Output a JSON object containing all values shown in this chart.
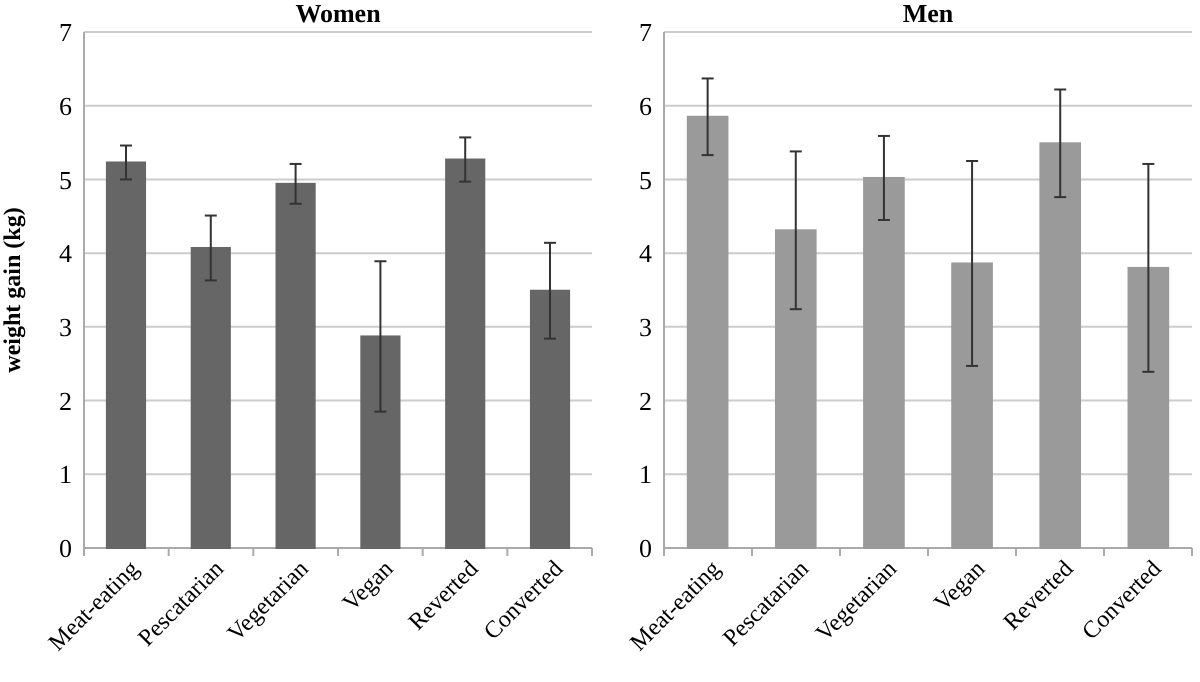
{
  "chart_data": [
    {
      "type": "bar",
      "title": "Women",
      "ylabel": "weight gain (kg)",
      "categories": [
        "Meat-eating",
        "Pescatarian",
        "Vegetarian",
        "Vegan",
        "Reverted",
        "Converted"
      ],
      "series": [
        {
          "color": "#666666",
          "values": [
            5.23,
            4.07,
            4.94,
            2.87,
            5.27,
            3.49
          ],
          "errors": [
            0.23,
            0.44,
            0.27,
            1.02,
            0.3,
            0.65
          ]
        }
      ],
      "ylim": [
        0,
        7
      ],
      "yticks": [
        0,
        1,
        2,
        3,
        4,
        5,
        6,
        7
      ],
      "grid": "y"
    },
    {
      "type": "bar",
      "title": "Men",
      "categories": [
        "Meat-eating",
        "Pescatarian",
        "Vegetarian",
        "Vegan",
        "Reverted",
        "Converted"
      ],
      "series": [
        {
          "color": "#9a9a9a",
          "values": [
            5.85,
            4.31,
            5.02,
            3.86,
            5.49,
            3.8
          ],
          "errors": [
            0.52,
            1.07,
            0.57,
            1.39,
            0.73,
            1.41
          ]
        }
      ],
      "ylim": [
        0,
        7
      ],
      "yticks": [
        0,
        1,
        2,
        3,
        4,
        5,
        6,
        7
      ],
      "grid": "y"
    }
  ]
}
